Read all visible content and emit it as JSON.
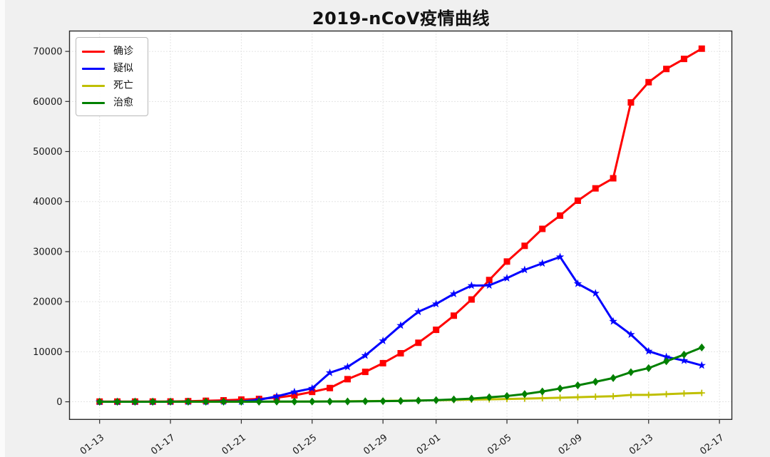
{
  "figure": {
    "background_color": "#f0f0f0",
    "plot_background_color": "#ffffff",
    "grid_color": "#c9c9c9",
    "spine_color": "#2a2a2a",
    "tick_label_color": "#1a1a1a"
  },
  "chart_data": {
    "type": "line",
    "title": "2019-nCoV疫情曲线",
    "xlabel": "",
    "ylabel": "",
    "grid": true,
    "legend_position": "upper-left",
    "x": [
      "01-13",
      "01-14",
      "01-15",
      "01-16",
      "01-17",
      "01-18",
      "01-19",
      "01-20",
      "01-21",
      "01-22",
      "01-23",
      "01-24",
      "01-25",
      "01-26",
      "01-27",
      "01-28",
      "01-29",
      "01-30",
      "01-31",
      "02-01",
      "02-02",
      "02-03",
      "02-04",
      "02-05",
      "02-06",
      "02-07",
      "02-08",
      "02-09",
      "02-10",
      "02-11",
      "02-12",
      "02-13",
      "02-14",
      "02-15",
      "02-16"
    ],
    "x_tick_labels": [
      "01-13",
      "01-17",
      "01-21",
      "01-25",
      "01-29",
      "02-01",
      "02-05",
      "02-09",
      "02-13",
      "02-17"
    ],
    "x_tick_positions": [
      0,
      4,
      8,
      12,
      16,
      19,
      23,
      27,
      31,
      35
    ],
    "y_ticks": [
      0,
      10000,
      20000,
      30000,
      40000,
      50000,
      60000,
      70000
    ],
    "ylim": [
      -3527,
      74075
    ],
    "series": [
      {
        "key": "confirmed",
        "name": "确诊",
        "color": "#ff0000",
        "marker": "square",
        "values": [
          41,
          41,
          41,
          45,
          62,
          121,
          198,
          291,
          440,
          571,
          830,
          1287,
          1975,
          2744,
          4515,
          5974,
          7711,
          9692,
          11791,
          14380,
          17205,
          20438,
          24324,
          28018,
          31161,
          34546,
          37198,
          40171,
          42638,
          44653,
          59804,
          63851,
          66492,
          68500,
          70548
        ]
      },
      {
        "key": "suspected",
        "name": "疑似",
        "color": "#0000ff",
        "marker": "star",
        "values": [
          0,
          0,
          0,
          0,
          0,
          0,
          0,
          54,
          37,
          393,
          1072,
          1965,
          2684,
          5794,
          6973,
          9239,
          12167,
          15238,
          17988,
          19544,
          21558,
          23214,
          23260,
          24702,
          26359,
          27657,
          28942,
          23589,
          21675,
          16067,
          13435,
          10109,
          8969,
          8228,
          7264
        ]
      },
      {
        "key": "deaths",
        "name": "死亡",
        "color": "#bfbf00",
        "marker": "plus",
        "values": [
          1,
          1,
          2,
          2,
          2,
          3,
          3,
          6,
          9,
          17,
          25,
          41,
          56,
          80,
          106,
          132,
          170,
          213,
          259,
          304,
          361,
          425,
          490,
          563,
          636,
          722,
          811,
          908,
          1016,
          1113,
          1367,
          1380,
          1523,
          1665,
          1770
        ]
      },
      {
        "key": "cured",
        "name": "治愈",
        "color": "#008000",
        "marker": "diamond",
        "values": [
          0,
          0,
          5,
          8,
          12,
          17,
          19,
          25,
          25,
          28,
          34,
          38,
          49,
          51,
          60,
          103,
          124,
          171,
          243,
          328,
          475,
          632,
          892,
          1153,
          1540,
          2050,
          2649,
          3281,
          3996,
          4740,
          5911,
          6723,
          8096,
          9419,
          10844
        ]
      }
    ]
  }
}
